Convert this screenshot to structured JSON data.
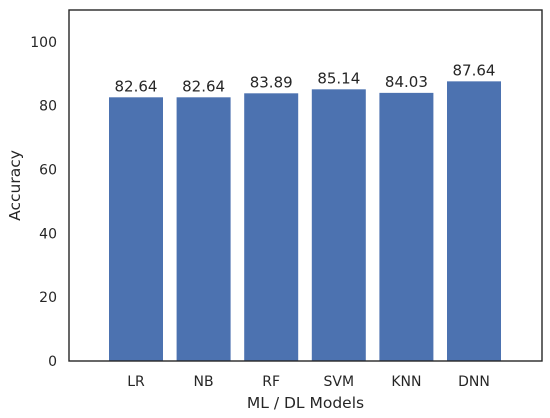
{
  "chart_data": {
    "type": "bar",
    "title": "",
    "xlabel": "ML / DL Models",
    "ylabel": "Accuracy",
    "categories": [
      "LR",
      "NB",
      "RF",
      "SVM",
      "KNN",
      "DNN"
    ],
    "values": [
      82.64,
      82.64,
      83.89,
      85.14,
      84.03,
      87.64
    ],
    "data_labels": [
      "82.64",
      "82.64",
      "83.89",
      "85.14",
      "84.03",
      "87.64"
    ],
    "ylim": [
      0,
      110
    ],
    "yticks": [
      0,
      20,
      40,
      60,
      80,
      100
    ],
    "grid": false,
    "legend": "none",
    "bar_color": "#4c72b0",
    "frame_color": "#262626"
  }
}
